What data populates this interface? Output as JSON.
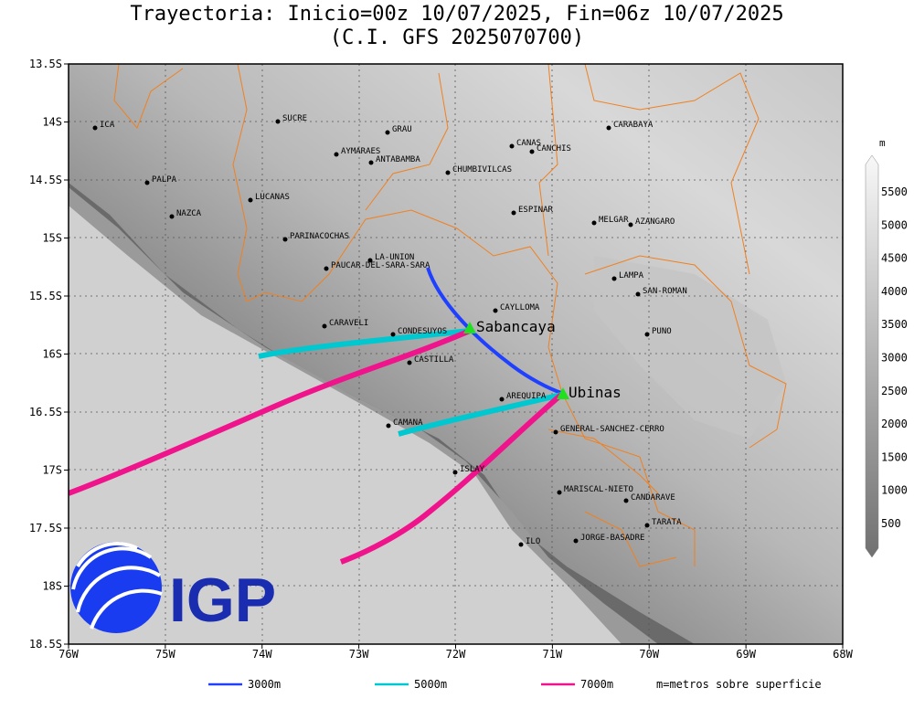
{
  "title": "Trayectoria: Inicio=00z 10/07/2025, Fin=06z 10/07/2025",
  "subtitle": "(C.I. GFS 2025070700)",
  "lat_labels": [
    "13.5S",
    "14S",
    "14.5S",
    "15S",
    "15.5S",
    "16S",
    "16.5S",
    "17S",
    "17.5S",
    "18S",
    "18.5S"
  ],
  "lon_labels": [
    "76W",
    "75W",
    "74W",
    "73W",
    "72W",
    "71W",
    "70W",
    "69W",
    "68W"
  ],
  "places": [
    "ICA",
    "SUCRE",
    "GRAU",
    "AYMARAES",
    "ANTABAMBA",
    "CHUMBIVILCAS",
    "CANAS",
    "CANCHIS",
    "CARABAYA",
    "PALPA",
    "LUCANAS",
    "NAZCA",
    "ESPINAR",
    "MELGAR",
    "AZANGARO",
    "PARINACOCHAS",
    "LA-UNION",
    "PAUCAR-DEL-SARA-SARA",
    "LAMPA",
    "SAN-ROMAN",
    "CAYLLOMA",
    "CARAVELI",
    "CONDESUYOS",
    "PUNO",
    "CASTILLA",
    "AREQUIPA",
    "CAMANA",
    "GENERAL-SANCHEZ-CERRO",
    "ISLAY",
    "MARISCAL-NIETO",
    "CANDARAVE",
    "TARATA",
    "ILO",
    "JORGE-BASADRE"
  ],
  "volcanoes": [
    "Sabancaya",
    "Ubinas"
  ],
  "colorbar": {
    "unit": "m",
    "labels": [
      "5500",
      "5000",
      "4500",
      "4000",
      "3500",
      "3000",
      "2500",
      "2000",
      "1500",
      "1000",
      "500"
    ]
  },
  "legend": [
    "3000m",
    "5000m",
    "7000m"
  ],
  "note": "m=metros sobre superficie",
  "logo": "IGP"
}
